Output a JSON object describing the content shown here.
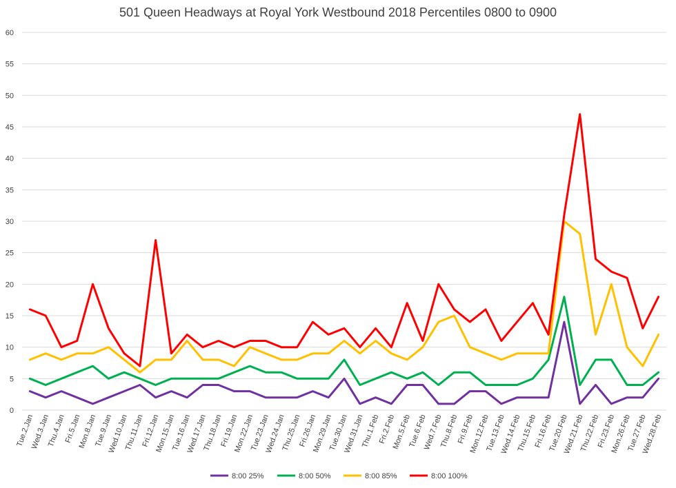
{
  "chart_data": {
    "type": "line",
    "title": "501 Queen Headways at Royal York Westbound 2018 Percentiles 0800 to 0900",
    "xlabel": "",
    "ylabel": "",
    "ylim": [
      0,
      60
    ],
    "yticks": [
      0,
      5,
      10,
      15,
      20,
      25,
      30,
      35,
      40,
      45,
      50,
      55,
      60
    ],
    "grid": true,
    "legend": "bottom",
    "categories": [
      "Tue.2.Jan",
      "Wed.3.Jan",
      "Thu.4.Jan",
      "Fri.5.Jan",
      "Mon.8.Jan",
      "Tue.9.Jan",
      "Wed.10.Jan",
      "Thu.11.Jan",
      "Fri.12.Jan",
      "Mon.15.Jan",
      "Tue.16.Jan",
      "Wed.17.Jan",
      "Thu.18.Jan",
      "Fri.19.Jan",
      "Mon.22.Jan",
      "Tue.23.Jan",
      "Wed.24.Jan",
      "Thu.25.Jan",
      "Fri.26.Jan",
      "Mon.29.Jan",
      "Tue.30.Jan",
      "Wed.31.Jan",
      "Thu.1.Feb",
      "Fri.2.Feb",
      "Mon.5.Feb",
      "Tue.6.Feb",
      "Wed.7.Feb",
      "Thu.8.Feb",
      "Fri.9.Feb",
      "Mon.12.Feb",
      "Tue.13.Feb",
      "Wed.14.Feb",
      "Thu.15.Feb",
      "Fri.16.Feb",
      "Tue.20.Feb",
      "Wed.21.Feb",
      "Thu.22.Feb",
      "Fri.23.Feb",
      "Mon.26.Feb",
      "Tue.27.Feb",
      "Wed.28.Feb"
    ],
    "series": [
      {
        "name": "8:00 25%",
        "color": "#7030a0",
        "values": [
          3,
          2,
          3,
          2,
          1,
          2,
          3,
          4,
          2,
          3,
          2,
          4,
          4,
          3,
          3,
          2,
          2,
          2,
          3,
          2,
          5,
          1,
          2,
          1,
          4,
          4,
          1,
          1,
          3,
          3,
          1,
          2,
          2,
          2,
          14,
          1,
          4,
          1,
          2,
          2,
          5
        ]
      },
      {
        "name": "8:00 50%",
        "color": "#00b050",
        "values": [
          5,
          4,
          5,
          6,
          7,
          5,
          6,
          5,
          4,
          5,
          5,
          5,
          5,
          6,
          7,
          6,
          6,
          5,
          5,
          5,
          8,
          4,
          5,
          6,
          5,
          6,
          4,
          6,
          6,
          4,
          4,
          4,
          5,
          8,
          18,
          4,
          8,
          8,
          4,
          4,
          6
        ]
      },
      {
        "name": "8:00 85%",
        "color": "#ffc000",
        "values": [
          8,
          9,
          8,
          9,
          9,
          10,
          8,
          6,
          8,
          8,
          11,
          8,
          8,
          7,
          10,
          9,
          8,
          8,
          9,
          9,
          11,
          9,
          11,
          9,
          8,
          10,
          14,
          15,
          10,
          9,
          8,
          9,
          9,
          9,
          30,
          28,
          12,
          20,
          10,
          7,
          12
        ]
      },
      {
        "name": "8:00 100%",
        "color": "#ff0000",
        "values": [
          16,
          15,
          10,
          11,
          20,
          13,
          9,
          7,
          27,
          9,
          12,
          10,
          11,
          10,
          11,
          11,
          10,
          10,
          14,
          12,
          13,
          10,
          13,
          10,
          17,
          11,
          20,
          16,
          14,
          16,
          11,
          14,
          17,
          12,
          31,
          47,
          24,
          22,
          21,
          13,
          18
        ]
      }
    ]
  }
}
